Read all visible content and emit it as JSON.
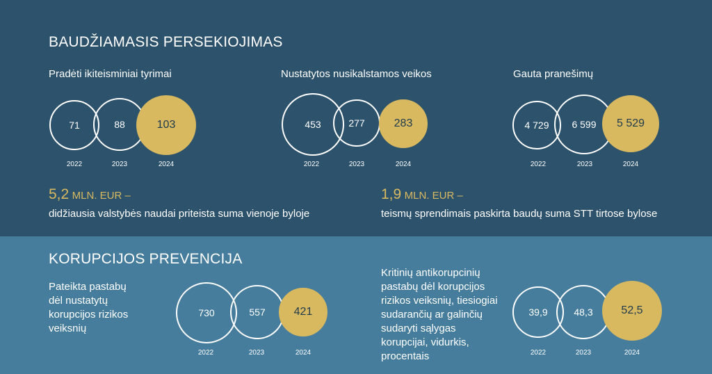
{
  "criminal": {
    "heading": "BAUDŽIAMASIS PERSEKIOJIMAS",
    "groups": [
      {
        "label": "Pradėti ikiteisminiai tyrimai",
        "values": [
          "71",
          "88",
          "103"
        ],
        "years": [
          "2022",
          "2023",
          "2024"
        ]
      },
      {
        "label": "Nustatytos nusikalstamos veikos",
        "values": [
          "453",
          "277",
          "283"
        ],
        "years": [
          "2022",
          "2023",
          "2024"
        ]
      },
      {
        "label": "Gauta pranešimų",
        "values": [
          "4 729",
          "6 599",
          "5 529"
        ],
        "years": [
          "2022",
          "2023",
          "2024"
        ]
      }
    ],
    "highlights": [
      {
        "value": "5,2",
        "unit": "MLN. EUR –",
        "text": "didžiausia valstybės naudai priteista suma vienoje byloje"
      },
      {
        "value": "1,9",
        "unit": "MLN. EUR –",
        "text": "teismų sprendimais paskirta baudų suma STT tirtose bylose"
      }
    ]
  },
  "prevention": {
    "heading": "KORUPCIJOS PREVENCIJA",
    "groups": [
      {
        "label": "Pateikta pastabų\ndėl nustatytų\nkorupcijos rizikos\nveiksnių",
        "values": [
          "730",
          "557",
          "421"
        ],
        "years": [
          "2022",
          "2023",
          "2024"
        ]
      },
      {
        "label": "Kritinių antikorupcinių\npastabų dėl korupcijos\nrizikos veiksnių, tiesiogiai\nsudarančių ar galinčių\nsudaryti sąlygas\nkorupcijai, vidurkis,\nprocentais",
        "values": [
          "39,9",
          "48,3",
          "52,5"
        ],
        "years": [
          "2022",
          "2023",
          "2024"
        ]
      }
    ]
  },
  "colors": {
    "top_bg": "#2d526b",
    "bottom_bg": "#467d9c",
    "accent": "#d8b960"
  }
}
